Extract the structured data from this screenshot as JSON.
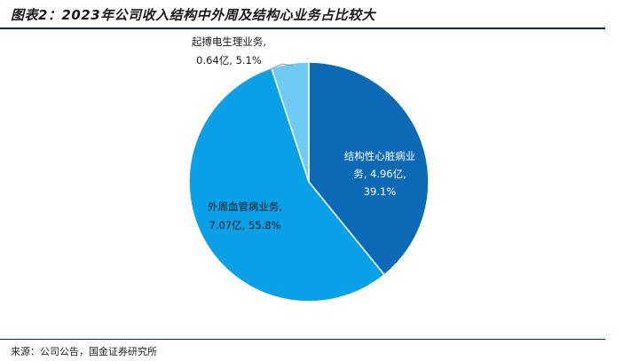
{
  "header": {
    "title": "图表2：2023年公司收入结构中外周及结构心业务占比较大"
  },
  "footer": {
    "source": "来源：公司公告，国金证券研究所"
  },
  "chart_data": {
    "type": "pie",
    "title": "",
    "start_angle_deg": 0,
    "direction": "clockwise",
    "slices": [
      {
        "name": "结构性心脏病业务",
        "value": 4.96,
        "percent": 39.1,
        "color": "#0c69b6",
        "label_lines": [
          "结构性心脏病业",
          "务, 4.96亿,",
          "39.1%"
        ],
        "label_color": "#ffffff"
      },
      {
        "name": "外周血管病业务",
        "value": 7.07,
        "percent": 55.8,
        "color": "#0aa0e8",
        "label_lines": [
          "外周血管病业务,",
          "7.07亿, 55.8%"
        ],
        "label_color": "#1a1a1a"
      },
      {
        "name": "起搏电生理业务",
        "value": 0.64,
        "percent": 5.1,
        "color": "#6fcaf4",
        "label_lines": [
          "起搏电生理业务,",
          "0.64亿, 5.1%"
        ],
        "label_color": "#1a1a1a"
      }
    ]
  }
}
